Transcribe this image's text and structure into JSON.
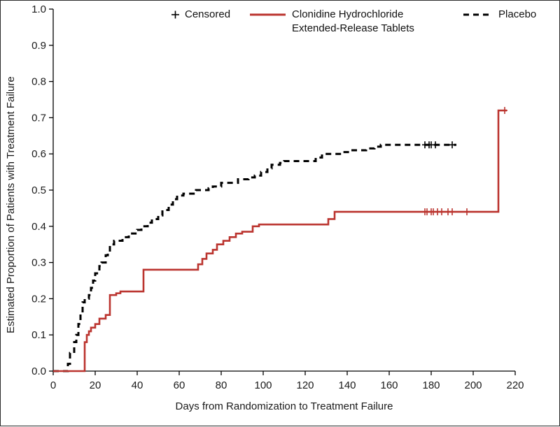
{
  "figure": {
    "background": "#ffffff",
    "border_color": "#2b2b2b"
  },
  "chart_data": {
    "type": "line",
    "variant": "kaplan_meier_step",
    "title": "",
    "xlabel": "Days from Randomization to Treatment Failure",
    "ylabel": "Estimated Proportion of Patients with Treatment Failure",
    "xlim": [
      0,
      220
    ],
    "ylim": [
      0.0,
      1.0
    ],
    "x_ticks": [
      "0",
      "20",
      "40",
      "60",
      "80",
      "100",
      "120",
      "140",
      "160",
      "180",
      "200",
      "220"
    ],
    "y_ticks": [
      "0.0",
      "0.1",
      "0.2",
      "0.3",
      "0.4",
      "0.5",
      "0.6",
      "0.7",
      "0.8",
      "0.9",
      "1.0"
    ],
    "grid": false,
    "legend_position": "top-inside",
    "legend": [
      {
        "label": "Censored",
        "marker": "plus",
        "color": "#000000"
      },
      {
        "label": "Clonidine Hydrochloride Extended-Release Tablets",
        "line": "solid",
        "color": "#bb342f"
      },
      {
        "label": "Placebo",
        "line": "dashed",
        "color": "#000000"
      }
    ],
    "series": [
      {
        "id": "placebo",
        "name": "Placebo",
        "color": "#000000",
        "line_style": "dashed",
        "step": true,
        "points": [
          [
            0,
            0.0
          ],
          [
            7,
            0.02
          ],
          [
            8,
            0.05
          ],
          [
            10,
            0.08
          ],
          [
            11,
            0.1
          ],
          [
            12,
            0.13
          ],
          [
            13,
            0.16
          ],
          [
            14,
            0.19
          ],
          [
            15,
            0.2
          ],
          [
            17,
            0.21
          ],
          [
            18,
            0.23
          ],
          [
            19,
            0.25
          ],
          [
            20,
            0.27
          ],
          [
            22,
            0.29
          ],
          [
            23,
            0.3
          ],
          [
            25,
            0.32
          ],
          [
            26,
            0.33
          ],
          [
            27,
            0.35
          ],
          [
            29,
            0.36
          ],
          [
            33,
            0.37
          ],
          [
            36,
            0.38
          ],
          [
            40,
            0.39
          ],
          [
            42,
            0.4
          ],
          [
            45,
            0.41
          ],
          [
            47,
            0.42
          ],
          [
            50,
            0.43
          ],
          [
            52,
            0.445
          ],
          [
            55,
            0.46
          ],
          [
            57,
            0.475
          ],
          [
            59,
            0.485
          ],
          [
            62,
            0.49
          ],
          [
            68,
            0.5
          ],
          [
            74,
            0.505
          ],
          [
            76,
            0.51
          ],
          [
            80,
            0.52
          ],
          [
            88,
            0.53
          ],
          [
            93,
            0.535
          ],
          [
            96,
            0.54
          ],
          [
            99,
            0.55
          ],
          [
            102,
            0.56
          ],
          [
            104,
            0.57
          ],
          [
            108,
            0.575
          ],
          [
            110,
            0.58
          ],
          [
            125,
            0.59
          ],
          [
            128,
            0.6
          ],
          [
            138,
            0.605
          ],
          [
            141,
            0.61
          ],
          [
            149,
            0.615
          ],
          [
            153,
            0.62
          ],
          [
            156,
            0.625
          ],
          [
            192,
            0.625
          ]
        ],
        "censored_points": [
          [
            177,
            0.625
          ],
          [
            179,
            0.625
          ],
          [
            180,
            0.625
          ],
          [
            182,
            0.625
          ],
          [
            190,
            0.625
          ]
        ]
      },
      {
        "id": "clonidine",
        "name": "Clonidine Hydrochloride Extended-Release Tablets",
        "color": "#bb342f",
        "line_style": "solid",
        "step": true,
        "points": [
          [
            0,
            0.0
          ],
          [
            15,
            0.08
          ],
          [
            16,
            0.1
          ],
          [
            17,
            0.11
          ],
          [
            18,
            0.12
          ],
          [
            20,
            0.13
          ],
          [
            22,
            0.145
          ],
          [
            25,
            0.155
          ],
          [
            27,
            0.21
          ],
          [
            30,
            0.215
          ],
          [
            32,
            0.22
          ],
          [
            43,
            0.28
          ],
          [
            69,
            0.295
          ],
          [
            71,
            0.31
          ],
          [
            73,
            0.325
          ],
          [
            76,
            0.335
          ],
          [
            78,
            0.35
          ],
          [
            81,
            0.36
          ],
          [
            84,
            0.37
          ],
          [
            87,
            0.38
          ],
          [
            90,
            0.385
          ],
          [
            95,
            0.4
          ],
          [
            98,
            0.405
          ],
          [
            131,
            0.42
          ],
          [
            134,
            0.44
          ],
          [
            212,
            0.72
          ],
          [
            216,
            0.72
          ]
        ],
        "censored_points": [
          [
            177,
            0.44
          ],
          [
            178,
            0.44
          ],
          [
            180,
            0.44
          ],
          [
            181,
            0.44
          ],
          [
            183,
            0.44
          ],
          [
            185,
            0.44
          ],
          [
            188,
            0.44
          ],
          [
            190,
            0.44
          ],
          [
            197,
            0.44
          ],
          [
            215,
            0.72
          ]
        ]
      }
    ]
  }
}
